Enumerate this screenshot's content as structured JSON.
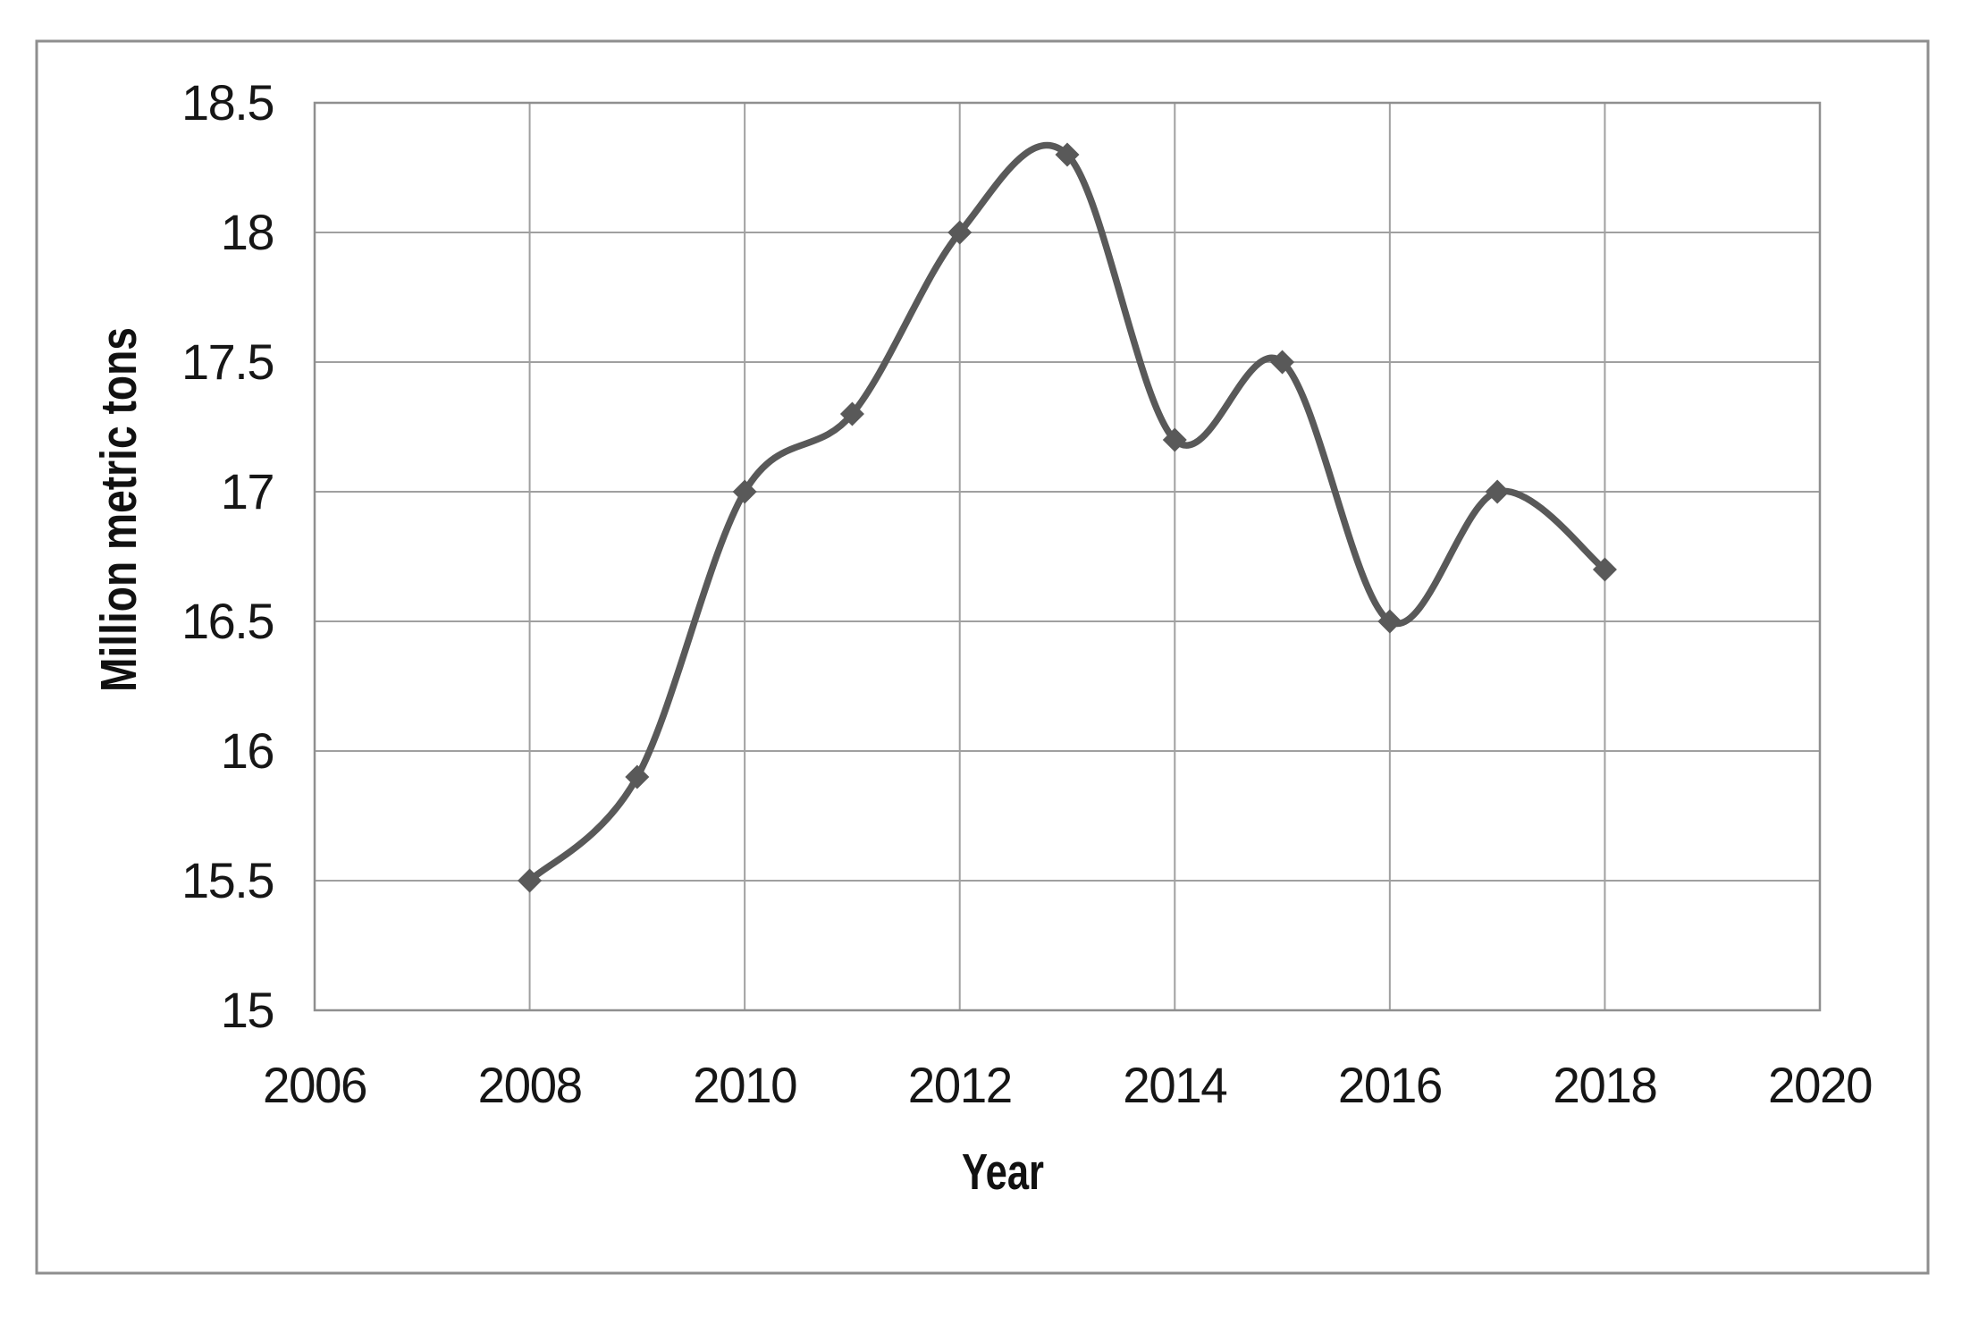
{
  "chart_data": {
    "type": "line",
    "title": "",
    "xlabel": "Year",
    "ylabel": "Million metric tons",
    "x": [
      2008,
      2009,
      2010,
      2011,
      2012,
      2013,
      2014,
      2015,
      2016,
      2017,
      2018
    ],
    "series": [
      {
        "name": "Million metric tons",
        "values": [
          15.5,
          15.9,
          17.0,
          17.3,
          18.0,
          18.3,
          17.2,
          17.5,
          16.5,
          17.0,
          16.7
        ]
      }
    ],
    "xlim": [
      2006,
      2020
    ],
    "ylim": [
      15,
      18.5
    ],
    "x_ticks": [
      {
        "value": 2006,
        "label": "2006"
      },
      {
        "value": 2008,
        "label": "2008"
      },
      {
        "value": 2010,
        "label": "2010"
      },
      {
        "value": 2012,
        "label": "2012"
      },
      {
        "value": 2014,
        "label": "2014"
      },
      {
        "value": 2016,
        "label": "2016"
      },
      {
        "value": 2018,
        "label": "2018"
      },
      {
        "value": 2020,
        "label": "2020"
      }
    ],
    "y_ticks": [
      {
        "value": 15,
        "label": "15"
      },
      {
        "value": 15.5,
        "label": "15.5"
      },
      {
        "value": 16,
        "label": "16"
      },
      {
        "value": 16.5,
        "label": "16.5"
      },
      {
        "value": 17,
        "label": "17"
      },
      {
        "value": 17.5,
        "label": "17.5"
      },
      {
        "value": 18,
        "label": "18"
      },
      {
        "value": 18.5,
        "label": "18.5"
      }
    ],
    "grid": true,
    "legend": false,
    "line_style": "smooth",
    "marker": "diamond",
    "colors": {
      "line": "#595959",
      "marker": "#595959",
      "gridline": "#a0a0a0",
      "plot_border": "#8f8f8f",
      "outer_border": "#8e8e8e",
      "text": "#161616",
      "background": "#ffffff"
    }
  }
}
